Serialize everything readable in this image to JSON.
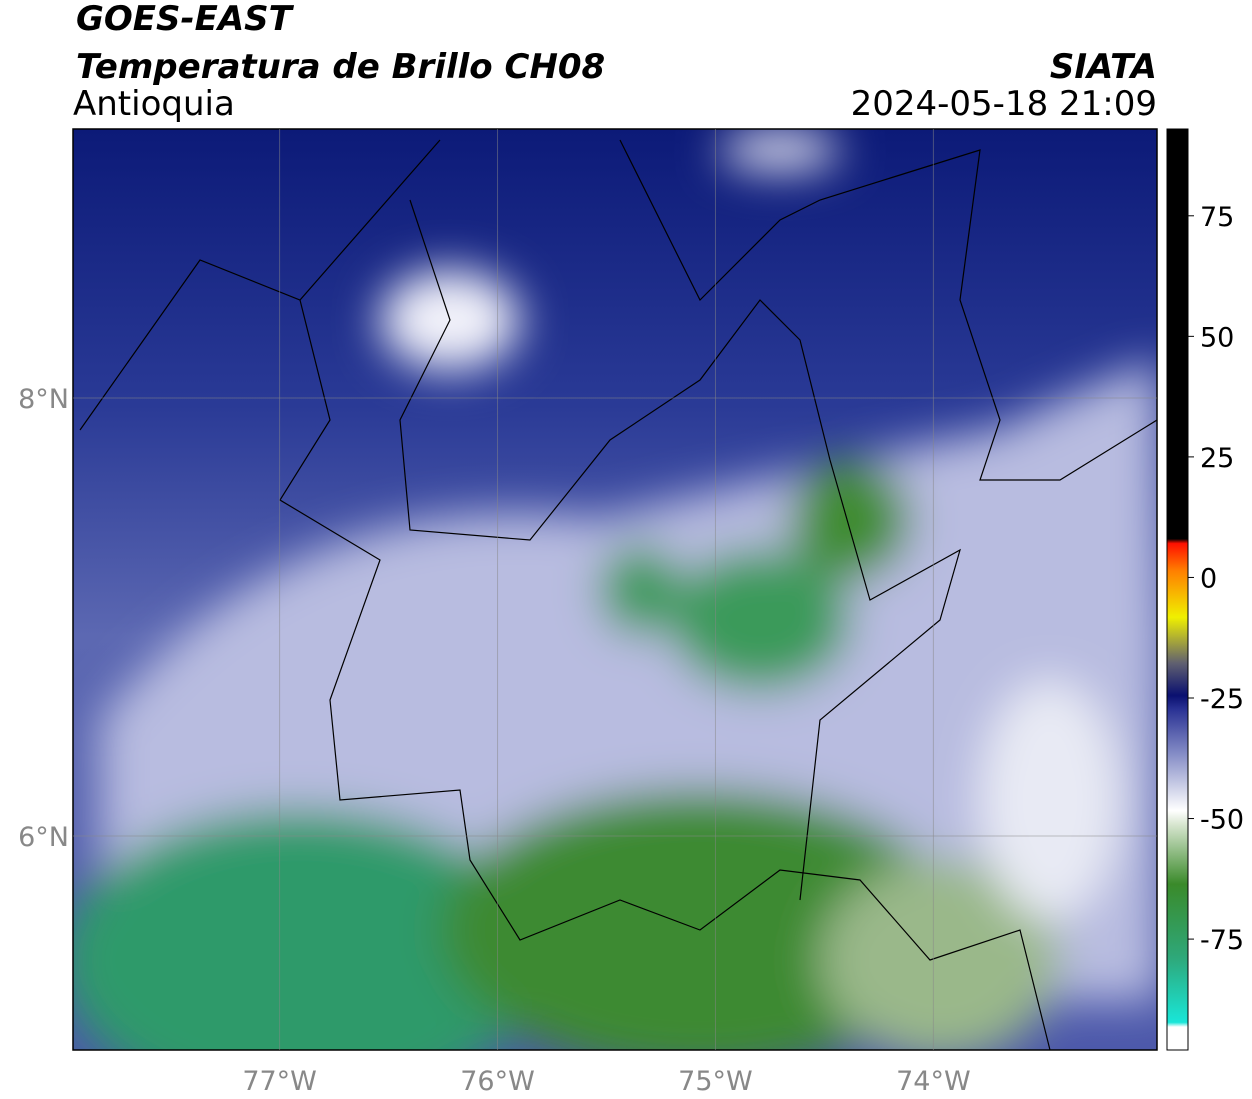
{
  "header": {
    "title": "GOES-EAST",
    "subtitle": "Temperatura de Brillo CH08",
    "region": "Antioquia",
    "source": "SIATA",
    "datetime": "2024-05-18 21:09"
  },
  "map": {
    "xlim": [
      -77.948,
      -72.974
    ],
    "ylim": [
      5.023,
      9.228
    ],
    "xticks": [
      {
        "value": -77,
        "label": "77°W"
      },
      {
        "value": -76,
        "label": "76°W"
      },
      {
        "value": -75,
        "label": "75°W"
      },
      {
        "value": -74,
        "label": "74°W"
      }
    ],
    "yticks": [
      {
        "value": 6,
        "label": "6°N"
      },
      {
        "value": 8,
        "label": "8°N"
      }
    ]
  },
  "colorbar": {
    "lim": [
      -98,
      93
    ],
    "ticks": [
      -75,
      -50,
      -25,
      0,
      25,
      50,
      75
    ]
  }
}
